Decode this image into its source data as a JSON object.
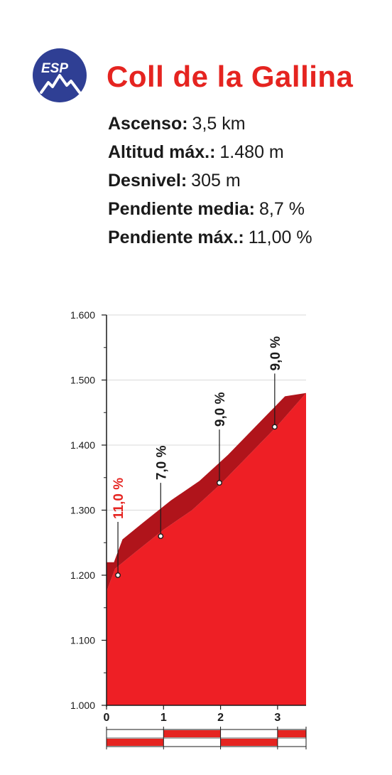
{
  "badge": {
    "label": "ESP",
    "color": "#2f3f94"
  },
  "header": {
    "title": "Coll de la Gallina"
  },
  "stats": [
    {
      "key": "Ascenso:",
      "value": "3,5 km"
    },
    {
      "key": "Altitud máx.:",
      "value": "1.480 m"
    },
    {
      "key": "Desnivel:",
      "value": "305 m"
    },
    {
      "key": "Pendiente media:",
      "value": "8,7 %"
    },
    {
      "key": "Pendiente máx.:",
      "value": "11,00 %"
    }
  ],
  "colors": {
    "accent": "#e52420",
    "profile_fill": "#ee1f25",
    "profile_top": "#b0141b",
    "axis": "#1a1a1a",
    "grid": "#d9d9d9"
  },
  "chart_data": {
    "type": "area",
    "xlim": [
      0,
      3.5
    ],
    "ylim": [
      1000,
      1600
    ],
    "x_ticks": [
      0,
      1,
      2,
      3
    ],
    "x_tick_labels": [
      "0",
      "1",
      "2",
      "3"
    ],
    "y_ticks": [
      1000,
      1100,
      1200,
      1300,
      1400,
      1500,
      1600
    ],
    "y_tick_labels": [
      "1.000",
      "1.100",
      "1.200",
      "1.300",
      "1.400",
      "1.500",
      "1.600"
    ],
    "grid": "horizontal",
    "profile": {
      "x": [
        0,
        0.15,
        0.5,
        1.0,
        1.5,
        2.0,
        2.5,
        3.0,
        3.5
      ],
      "y": [
        1175,
        1210,
        1235,
        1270,
        1300,
        1340,
        1385,
        1430,
        1480
      ]
    },
    "segments": [
      {
        "km": 0.2,
        "elev": 1200,
        "label": "11,0 %",
        "highlight": true
      },
      {
        "km": 0.95,
        "elev": 1260,
        "label": "7,0 %",
        "highlight": false
      },
      {
        "km": 1.98,
        "elev": 1342,
        "label": "9,0 %",
        "highlight": false
      },
      {
        "km": 2.95,
        "elev": 1428,
        "label": "9,0 %",
        "highlight": false
      }
    ],
    "km_bar": [
      {
        "from": 0,
        "to": 1,
        "top": false
      },
      {
        "from": 1,
        "to": 2,
        "top": true
      },
      {
        "from": 2,
        "to": 3,
        "top": false
      },
      {
        "from": 3,
        "to": 3.5,
        "top": true
      }
    ]
  }
}
